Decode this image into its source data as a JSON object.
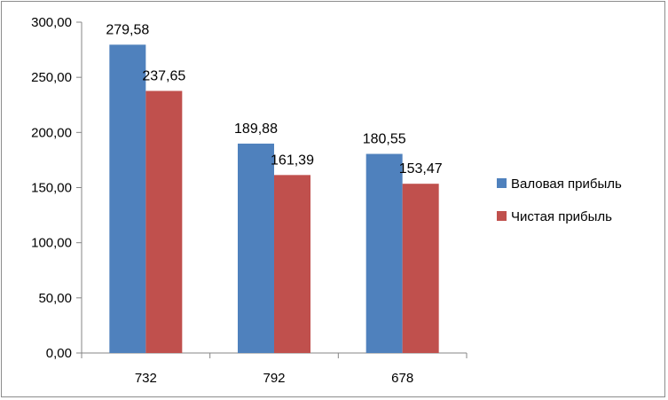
{
  "chart_data": {
    "type": "bar",
    "categories": [
      "732",
      "792",
      "678"
    ],
    "series": [
      {
        "name": "Валовая прибыль",
        "values": [
          279.58,
          189.88,
          180.55
        ],
        "color": "#4f81bd"
      },
      {
        "name": "Чистая прибыль",
        "values": [
          237.65,
          161.39,
          153.47
        ],
        "color": "#c0504d"
      }
    ],
    "data_labels": [
      [
        "279,58",
        "189,88",
        "180,55"
      ],
      [
        "237,65",
        "161,39",
        "153,47"
      ]
    ],
    "y_ticks": [
      {
        "value": 0,
        "label": "0,00"
      },
      {
        "value": 50,
        "label": "50,00"
      },
      {
        "value": 100,
        "label": "100,00"
      },
      {
        "value": 150,
        "label": "150,00"
      },
      {
        "value": 200,
        "label": "200,00"
      },
      {
        "value": 250,
        "label": "250,00"
      },
      {
        "value": 300,
        "label": "300,00"
      }
    ],
    "ylim": [
      0,
      300
    ],
    "grid": false,
    "legend_position": "right"
  }
}
